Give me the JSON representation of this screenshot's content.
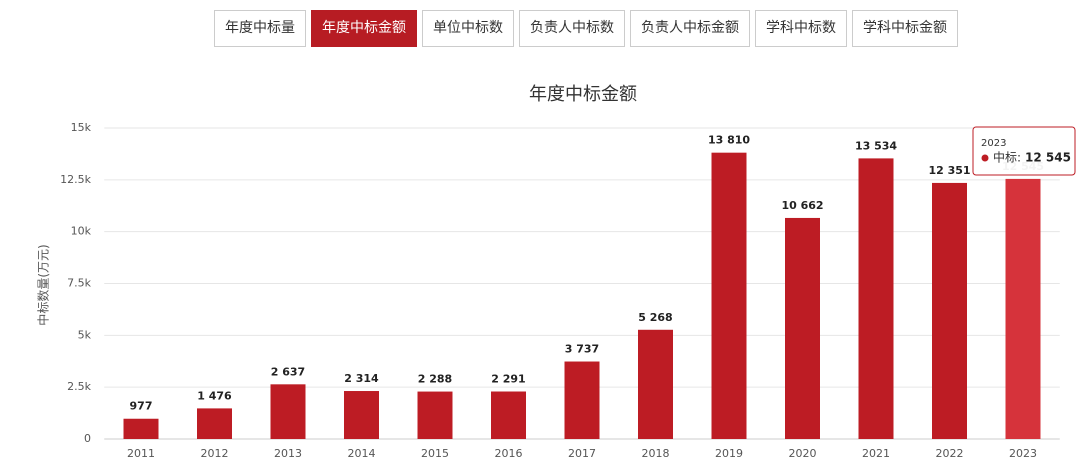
{
  "tabs": [
    "年度中标量",
    "年度中标金额",
    "单位中标数",
    "负责人中标数",
    "负责人中标金额",
    "学科中标数",
    "学科中标金额"
  ],
  "active_tab": 1,
  "chart_data": {
    "type": "bar",
    "title": "年度中标金额",
    "y_label": "中标数量(万元)",
    "categories": [
      "2011",
      "2012",
      "2013",
      "2014",
      "2015",
      "2016",
      "2017",
      "2018",
      "2019",
      "2020",
      "2021",
      "2022",
      "2023"
    ],
    "values": [
      977,
      1476,
      2637,
      2314,
      2288,
      2291,
      3737,
      5268,
      13810,
      10662,
      13534,
      12351,
      12545
    ],
    "value_labels": [
      "977",
      "1 476",
      "2 637",
      "2 314",
      "2 288",
      "2 291",
      "3 737",
      "5 268",
      "13 810",
      "10 662",
      "13 534",
      "12 351",
      "12 545"
    ],
    "color": "#bd1c24",
    "highlight_color": "#d6333b",
    "ylim": [
      0,
      15000
    ],
    "yticks": [
      0,
      {
        "value": 2500,
        "label": "2.5k"
      },
      {
        "value": 5000,
        "label": "5k"
      },
      {
        "value": 7500,
        "label": "7.5k"
      },
      {
        "value": 10000,
        "label": "10k"
      },
      {
        "value": 12500,
        "label": "12.5k"
      },
      {
        "value": 15000,
        "label": "15k"
      }
    ],
    "grid": true,
    "tooltip": {
      "title": "2023",
      "series": "中标:",
      "value": "12 545"
    }
  }
}
